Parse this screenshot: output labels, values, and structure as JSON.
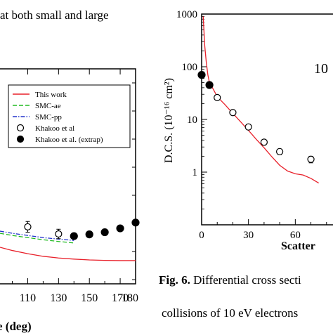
{
  "page": {
    "top_left_text": "at both small and large",
    "caption": {
      "fig_label": "Fig. 6.",
      "line1_rest": " Differential cross secti",
      "line2": "collisions of 10 eV electrons"
    }
  },
  "chart_data": [
    {
      "type": "line",
      "xlabel": "e (deg)",
      "ylabel": "",
      "xlim": [
        92,
        180
      ],
      "x_ticks": [
        110,
        130,
        150,
        170
      ],
      "x_tick_labels": [
        "110",
        "130",
        "150",
        "170"
      ],
      "x_edge_labels": {
        "right": "180"
      },
      "ylim": [
        0,
        1
      ],
      "legend_position": "top-right",
      "legend": [
        {
          "label": "This work",
          "style": "solid",
          "color": "#e8202a"
        },
        {
          "label": "SMC-ae",
          "style": "dashed",
          "color": "#22bb22"
        },
        {
          "label": "SMC-pp",
          "style": "dashdot",
          "color": "#2233cc"
        },
        {
          "label": "Khakoo et al",
          "style": "open-circle",
          "color": "#000000"
        },
        {
          "label": "Khakoo et al. (extrap)",
          "style": "filled-circle",
          "color": "#000000"
        }
      ],
      "series": [
        {
          "name": "This work",
          "color": "#e8202a",
          "x": [
            92,
            100,
            110,
            120,
            130,
            140,
            150,
            160,
            170,
            180
          ],
          "y": [
            0.17,
            0.155,
            0.14,
            0.128,
            0.12,
            0.115,
            0.111,
            0.109,
            0.108,
            0.108
          ]
        },
        {
          "name": "SMC-ae",
          "color": "#22bb22",
          "x": [
            92,
            100,
            110,
            120,
            130,
            140
          ],
          "y": [
            0.235,
            0.225,
            0.215,
            0.205,
            0.197,
            0.19
          ]
        },
        {
          "name": "SMC-pp",
          "color": "#2233cc",
          "x": [
            92,
            100,
            110,
            120,
            130,
            140
          ],
          "y": [
            0.245,
            0.235,
            0.225,
            0.215,
            0.208,
            0.202
          ]
        },
        {
          "name": "Khakoo et al",
          "x": [
            110,
            130
          ],
          "y": [
            0.265,
            0.232
          ],
          "err": [
            0.025,
            0.022
          ]
        },
        {
          "name": "Khakoo et al. (extrap)",
          "x": [
            140,
            150,
            160,
            170,
            180
          ],
          "y": [
            0.222,
            0.23,
            0.24,
            0.258,
            0.285
          ]
        }
      ]
    },
    {
      "type": "line",
      "title": "10",
      "xlabel": "Scatter",
      "ylabel": "D.C.S. (10⁻¹⁶ cm²)",
      "xscale": "linear",
      "yscale": "log",
      "xlim": [
        0,
        90
      ],
      "ylim": [
        0.1,
        1000
      ],
      "x_ticks": [
        0,
        30,
        60
      ],
      "x_tick_labels": [
        "0",
        "30",
        "60"
      ],
      "y_ticks": [
        1,
        10,
        100,
        1000
      ],
      "y_tick_labels": [
        "1",
        "10",
        "100",
        "1000"
      ],
      "series": [
        {
          "name": "This work",
          "color": "#e8202a",
          "x": [
            1,
            2,
            3,
            4,
            5,
            8,
            10,
            15,
            20,
            25,
            30,
            35,
            40,
            45,
            50,
            55,
            60,
            65,
            70,
            75
          ],
          "y": [
            900,
            250,
            120,
            70,
            50,
            35,
            27,
            19,
            13,
            9,
            6.2,
            4.2,
            2.9,
            1.95,
            1.35,
            1.05,
            0.93,
            0.88,
            0.76,
            0.62
          ]
        },
        {
          "name": "Khakoo et al",
          "x": [
            10,
            20,
            30,
            40,
            50,
            70
          ],
          "y": [
            26,
            13.5,
            7.2,
            3.7,
            2.45,
            1.75
          ],
          "err": [
            2.5,
            1.4,
            0.8,
            0.45,
            0.3,
            0.25
          ]
        },
        {
          "name": "Khakoo et al. (extrap)",
          "x": [
            0,
            5
          ],
          "y": [
            70,
            45
          ]
        }
      ]
    }
  ]
}
